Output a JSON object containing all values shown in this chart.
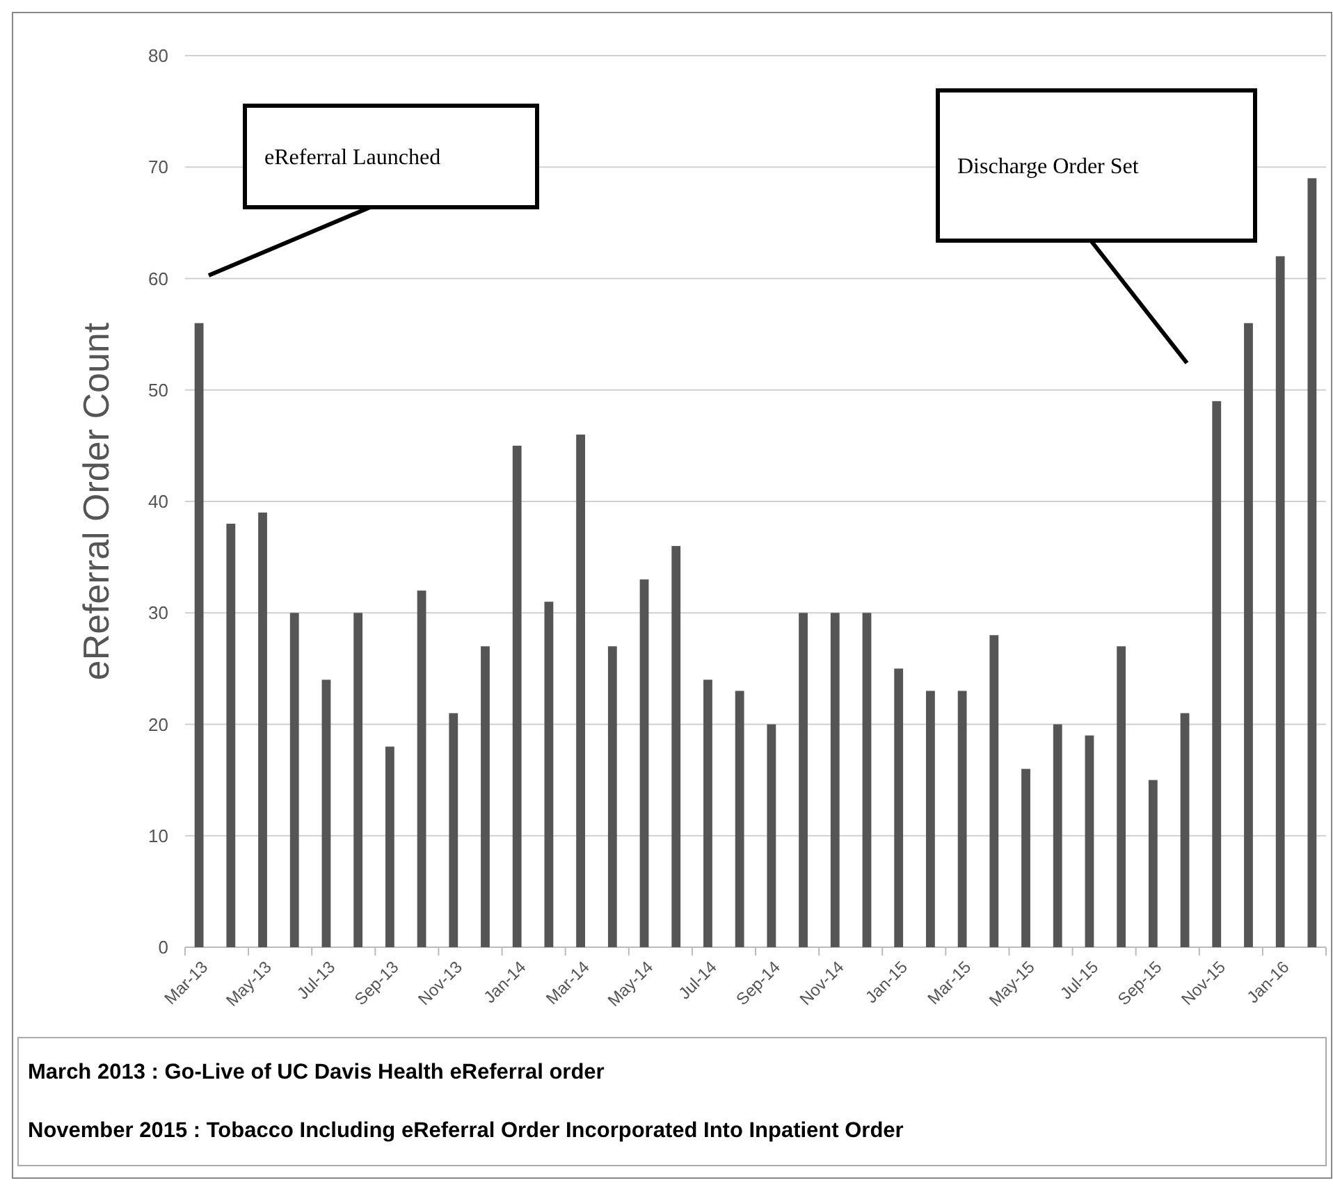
{
  "chart_data": {
    "type": "bar",
    "ylabel": "eReferral Order Count",
    "categories": [
      "Mar-13",
      null,
      "May-13",
      null,
      "Jul-13",
      null,
      "Sep-13",
      null,
      "Nov-13",
      null,
      "Jan-14",
      null,
      "Mar-14",
      null,
      "May-14",
      null,
      "Jul-14",
      null,
      "Sep-14",
      null,
      "Nov-14",
      null,
      "Jan-15",
      null,
      "Mar-15",
      null,
      "May-15",
      null,
      "Jul-15",
      null,
      "Sep-15",
      null,
      "Nov-15",
      null,
      "Jan-16",
      null
    ],
    "values": [
      56,
      38,
      39,
      30,
      24,
      30,
      18,
      32,
      21,
      27,
      45,
      31,
      46,
      27,
      33,
      36,
      24,
      23,
      20,
      30,
      30,
      30,
      25,
      23,
      23,
      28,
      16,
      20,
      19,
      27,
      15,
      21,
      49,
      56,
      62,
      69
    ],
    "color": "#555555",
    "ylim": [
      0,
      80
    ],
    "yticks": [
      0,
      10,
      20,
      30,
      40,
      50,
      60,
      70,
      80
    ],
    "grid": "y",
    "annotations": [
      "eReferral Launched",
      "Discharge Order Set",
      "March 2013 : Go-Live of UC Davis Health eReferral order",
      "November 2015 : Tobacco Including eReferral Order Incorporated Into Inpatient Order"
    ]
  }
}
